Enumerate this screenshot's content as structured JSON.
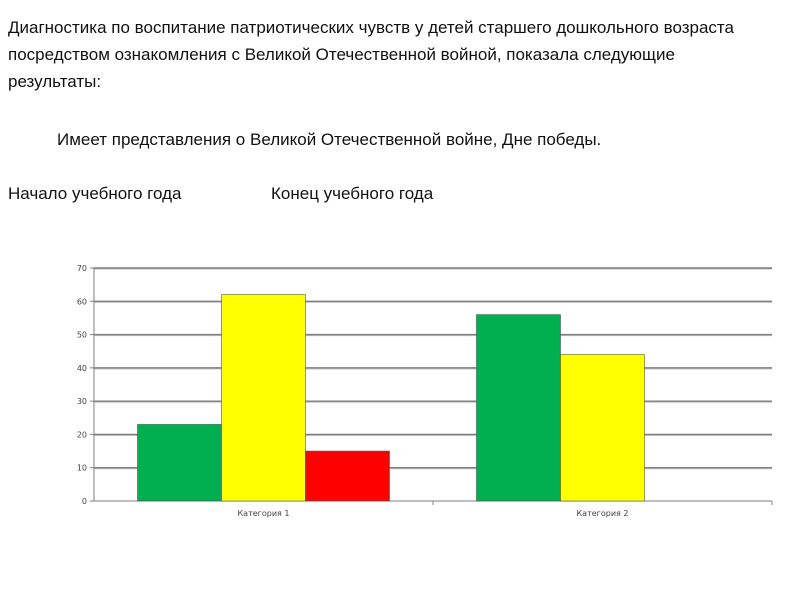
{
  "text": {
    "intro": " Диагностика по воспитание патриотических чувств у детей старшего дошкольного возраста посредством ознакомления с  Великой Отечественной войной, показала следующие результаты:",
    "subtitle": "Имеет представления о Великой Отечественной войне, Дне победы.",
    "period_start": "Начало учебного года",
    "period_end": "Конец учебного года"
  },
  "chart_data": {
    "type": "bar",
    "categories": [
      "Категория 1",
      "Категория 2"
    ],
    "series": [
      {
        "color": "#00b050",
        "values": [
          23,
          56
        ]
      },
      {
        "color": "#ffff00",
        "values": [
          62,
          44
        ]
      },
      {
        "color": "#ff0000",
        "values": [
          15,
          null
        ]
      }
    ],
    "ylim": [
      0,
      70
    ],
    "yticks": [
      0,
      10,
      20,
      30,
      40,
      50,
      60,
      70
    ],
    "grid": true,
    "legend": "none"
  }
}
